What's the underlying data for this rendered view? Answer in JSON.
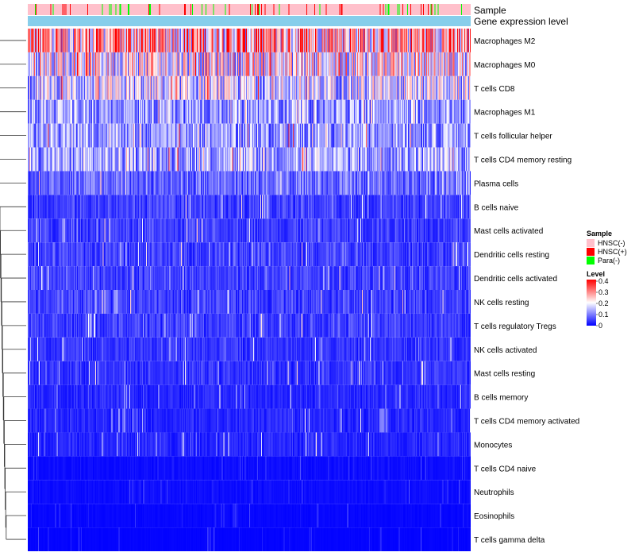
{
  "chart_data": {
    "type": "heatmap",
    "annotations": {
      "sample_label": "Sample",
      "level_label": "Gene expression level"
    },
    "rows": [
      {
        "name": "Macrophages M2",
        "mean": 0.26
      },
      {
        "name": "Macrophages M0",
        "mean": 0.2
      },
      {
        "name": "T cells CD8",
        "mean": 0.16
      },
      {
        "name": "Macrophages M1",
        "mean": 0.12
      },
      {
        "name": "T cells follicular helper",
        "mean": 0.12
      },
      {
        "name": "T cells CD4 memory resting",
        "mean": 0.13
      },
      {
        "name": "Plasma cells",
        "mean": 0.08
      },
      {
        "name": "B cells naive",
        "mean": 0.05
      },
      {
        "name": "Mast cells activated",
        "mean": 0.05
      },
      {
        "name": "Dendritic cells resting",
        "mean": 0.05
      },
      {
        "name": "Dendritic cells activated",
        "mean": 0.05
      },
      {
        "name": "NK cells resting",
        "mean": 0.05
      },
      {
        "name": "T cells regulatory  Tregs",
        "mean": 0.05
      },
      {
        "name": "NK cells activated",
        "mean": 0.04
      },
      {
        "name": "Mast cells resting",
        "mean": 0.04
      },
      {
        "name": "B cells memory",
        "mean": 0.03
      },
      {
        "name": "T cells CD4 memory activated",
        "mean": 0.03
      },
      {
        "name": "Monocytes",
        "mean": 0.03
      },
      {
        "name": "T cells CD4 naive",
        "mean": 0.01
      },
      {
        "name": "Neutrophils",
        "mean": 0.01
      },
      {
        "name": "Eosinophils",
        "mean": 0.005
      },
      {
        "name": "T cells gamma delta",
        "mean": 0.003
      }
    ],
    "n_samples": 550,
    "color_scale": {
      "min": 0,
      "max": 0.4,
      "low": "#0000ff",
      "mid": "#ffffff",
      "high": "#ff0000"
    },
    "legend": {
      "sample_title": "Sample",
      "sample_items": [
        {
          "label": "HNSC(-)",
          "color": "#ffc0cb"
        },
        {
          "label": "HNSC(+)",
          "color": "#ff0000"
        },
        {
          "label": "Para(-)",
          "color": "#00ff00"
        }
      ],
      "level_title": "Level",
      "level_ticks": [
        {
          "label": "0.4",
          "value": 0.4
        },
        {
          "label": "0.3",
          "value": 0.3
        },
        {
          "label": "0.2",
          "value": 0.2
        },
        {
          "label": "0.1",
          "value": 0.1
        },
        {
          "label": "0",
          "value": 0
        }
      ]
    },
    "level_annotation_color": "#87ceeb"
  }
}
